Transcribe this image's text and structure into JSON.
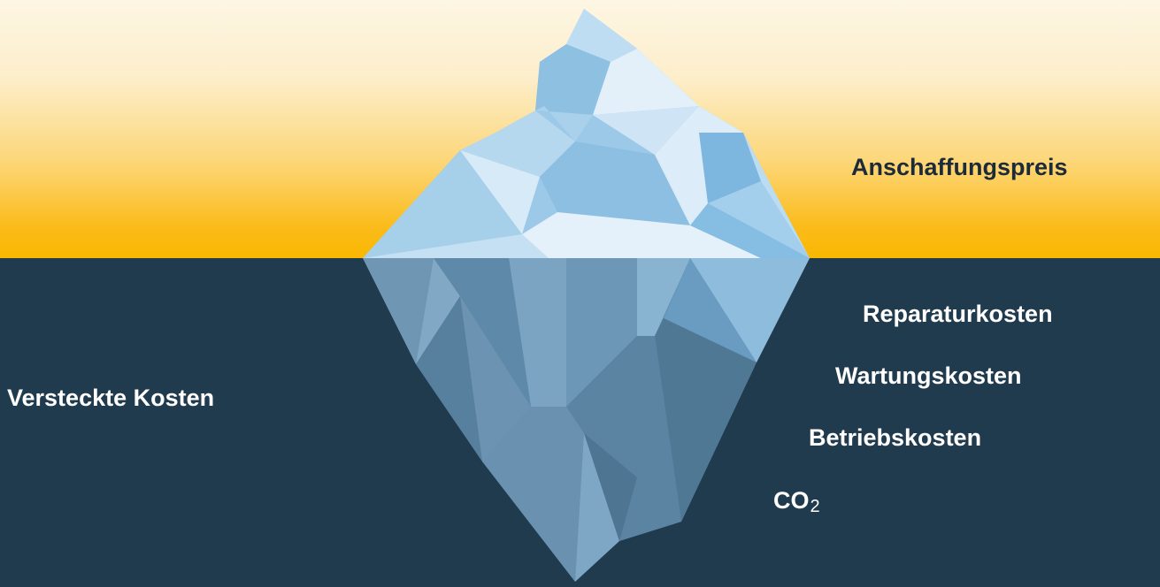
{
  "labels": {
    "visible_cost": "Anschaffungspreis",
    "hidden_costs": "Versteckte Kosten",
    "repair": "Reparaturkosten",
    "maintenance": "Wartungskosten",
    "operating": "Betriebskosten",
    "co2_main": "CO",
    "co2_sub": "2"
  },
  "colors": {
    "sky_top": "#fdf6e4",
    "sky_bottom": "#f9b800",
    "sea": "#213b4e",
    "ice_light": "#d9ebf7",
    "ice_mid": "#8fc2e4",
    "ice_dark": "#6fa9d4",
    "underwater_light": "#7aa3c0",
    "underwater_dark": "#4d7390",
    "text_dark": "#1d2a38",
    "text_light": "#ffffff"
  },
  "icons": [
    "iceberg-illustration"
  ]
}
